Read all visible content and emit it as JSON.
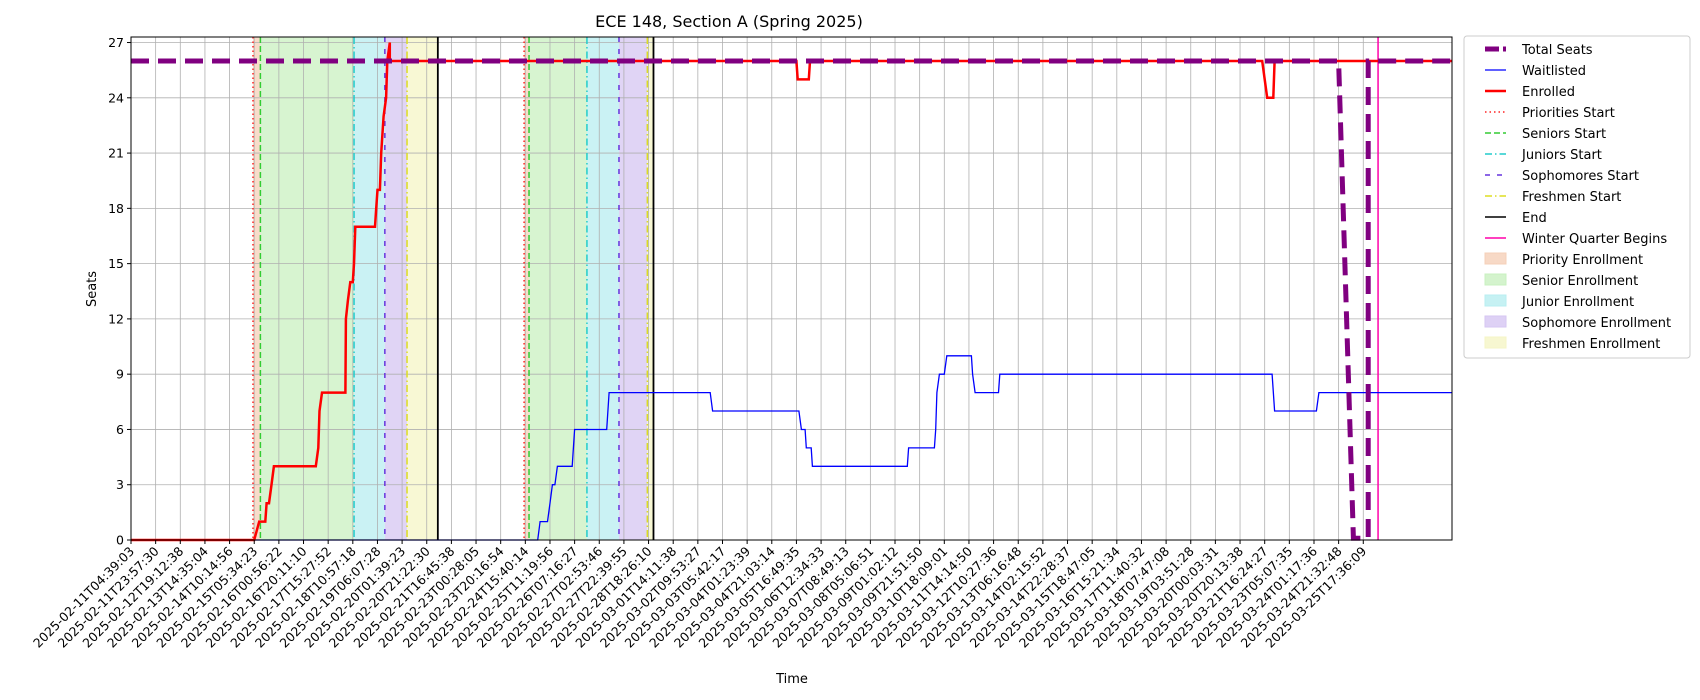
{
  "chart_data": {
    "type": "line",
    "title": "ECE 148, Section A (Spring 2025)",
    "xlabel": "Time",
    "ylabel": "Seats",
    "ylim": [
      0,
      27.3
    ],
    "yticks": [
      0,
      3,
      6,
      9,
      12,
      15,
      18,
      21,
      24,
      27
    ],
    "x_ticks": [
      "2025-02-11T04:39:03",
      "2025-02-11T23:57:30",
      "2025-02-12T19:12:38",
      "2025-02-13T14:35:04",
      "2025-02-14T10:14:56",
      "2025-02-15T05:34:23",
      "2025-02-16T00:56:22",
      "2025-02-16T20:11:10",
      "2025-02-17T15:27:52",
      "2025-02-18T10:57:18",
      "2025-02-19T06:07:28",
      "2025-02-20T01:39:23",
      "2025-02-20T21:22:30",
      "2025-02-21T16:45:38",
      "2025-02-23T00:28:05",
      "2025-02-23T20:16:54",
      "2025-02-24T15:40:14",
      "2025-02-25T11:19:56",
      "2025-02-26T07:16:27",
      "2025-02-27T02:53:46",
      "2025-02-27T22:39:55",
      "2025-02-28T18:26:10",
      "2025-03-01T14:11:38",
      "2025-03-02T09:53:27",
      "2025-03-03T05:42:17",
      "2025-03-04T01:23:39",
      "2025-03-04T21:03:14",
      "2025-03-05T16:49:35",
      "2025-03-06T12:34:33",
      "2025-03-07T08:49:13",
      "2025-03-08T05:06:51",
      "2025-03-09T01:02:12",
      "2025-03-09T21:51:50",
      "2025-03-10T18:09:01",
      "2025-03-11T14:14:50",
      "2025-03-12T10:27:36",
      "2025-03-13T06:16:48",
      "2025-03-14T02:15:52",
      "2025-03-14T22:28:37",
      "2025-03-15T18:47:05",
      "2025-03-16T15:21:34",
      "2025-03-17T11:40:32",
      "2025-03-18T07:47:08",
      "2025-03-19T03:51:28",
      "2025-03-20T00:03:31",
      "2025-03-20T20:13:38",
      "2025-03-21T16:24:27",
      "2025-03-23T05:07:35",
      "2025-03-24T01:17:36",
      "2025-03-24T21:32:48",
      "2025-03-25T17:36:09"
    ],
    "grid": true,
    "legend_position": "outside-right",
    "series": [
      {
        "name": "Total Seats",
        "color": "#800080",
        "style": "dashed-thick",
        "points": [
          [
            0,
            26
          ],
          [
            49,
            26
          ],
          [
            49.6,
            0.1
          ],
          [
            50.2,
            0.1
          ],
          [
            50.2,
            26
          ],
          [
            53.6,
            26
          ]
        ]
      },
      {
        "name": "Waitlisted",
        "color": "#0000ff",
        "style": "solid-thin",
        "points": [
          [
            0,
            0
          ],
          [
            14.0,
            0
          ],
          [
            16.5,
            0
          ],
          [
            16.6,
            1
          ],
          [
            16.9,
            1
          ],
          [
            17.0,
            2
          ],
          [
            17.1,
            3
          ],
          [
            17.2,
            3
          ],
          [
            17.3,
            4
          ],
          [
            17.9,
            4
          ],
          [
            18.0,
            6
          ],
          [
            19.3,
            6
          ],
          [
            19.35,
            7
          ],
          [
            19.4,
            8
          ],
          [
            23.5,
            8
          ],
          [
            23.6,
            7
          ],
          [
            27.1,
            7
          ],
          [
            27.2,
            6
          ],
          [
            27.35,
            6
          ],
          [
            27.4,
            5
          ],
          [
            27.6,
            5
          ],
          [
            27.65,
            4
          ],
          [
            31.5,
            4
          ],
          [
            31.55,
            5
          ],
          [
            32.6,
            5
          ],
          [
            32.65,
            6
          ],
          [
            32.7,
            8
          ],
          [
            32.8,
            9
          ],
          [
            33.0,
            9
          ],
          [
            33.1,
            10
          ],
          [
            34.1,
            10
          ],
          [
            34.15,
            9
          ],
          [
            34.25,
            8
          ],
          [
            35.2,
            8
          ],
          [
            35.25,
            9
          ],
          [
            46.3,
            9
          ],
          [
            46.4,
            7
          ],
          [
            48.1,
            7
          ],
          [
            48.2,
            8
          ],
          [
            53.6,
            8
          ]
        ]
      },
      {
        "name": "Enrolled",
        "color": "#ff0000",
        "style": "solid-thick",
        "points": [
          [
            0,
            0
          ],
          [
            5.0,
            0
          ],
          [
            5.2,
            1
          ],
          [
            5.45,
            1
          ],
          [
            5.5,
            2
          ],
          [
            5.6,
            2
          ],
          [
            5.7,
            3
          ],
          [
            5.8,
            4
          ],
          [
            7.5,
            4
          ],
          [
            7.6,
            5
          ],
          [
            7.65,
            7
          ],
          [
            7.75,
            8
          ],
          [
            8.7,
            8
          ],
          [
            8.72,
            12
          ],
          [
            8.8,
            13
          ],
          [
            8.9,
            14
          ],
          [
            9.0,
            14
          ],
          [
            9.05,
            15
          ],
          [
            9.1,
            17
          ],
          [
            9.9,
            17
          ],
          [
            9.95,
            18
          ],
          [
            10.0,
            19
          ],
          [
            10.1,
            19
          ],
          [
            10.15,
            21
          ],
          [
            10.25,
            23
          ],
          [
            10.35,
            24
          ],
          [
            10.4,
            26
          ],
          [
            10.5,
            27
          ],
          [
            10.5,
            26
          ],
          [
            27.0,
            26
          ],
          [
            27.05,
            25
          ],
          [
            27.5,
            25
          ],
          [
            27.55,
            26
          ],
          [
            45.9,
            26
          ],
          [
            46.0,
            25
          ],
          [
            46.1,
            24
          ],
          [
            46.35,
            24
          ],
          [
            46.4,
            26
          ],
          [
            53.6,
            26
          ]
        ]
      }
    ],
    "markers": [
      {
        "name": "Priorities Start",
        "color": "#ff2222",
        "style": "dotted",
        "x": [
          4.95,
          15.95
        ]
      },
      {
        "name": "Seniors Start",
        "color": "#33cc33",
        "style": "dashed",
        "x": [
          5.25,
          16.15
        ]
      },
      {
        "name": "Juniors Start",
        "color": "#22cccc",
        "style": "dashdot",
        "x": [
          9.05,
          18.5
        ]
      },
      {
        "name": "Sophomores Start",
        "color": "#6633dd",
        "style": "loosedash",
        "x": [
          10.3,
          19.8
        ]
      },
      {
        "name": "Freshmen Start",
        "color": "#dddd22",
        "style": "dashdot",
        "x": [
          11.2,
          20.95
        ]
      },
      {
        "name": "End",
        "color": "#000000",
        "style": "solid",
        "x": [
          12.45,
          21.2
        ]
      },
      {
        "name": "Winter Quarter Begins",
        "color": "#ff00aa",
        "style": "solid",
        "x": [
          50.6
        ]
      }
    ],
    "periods": [
      {
        "name": "Priority Enrollment",
        "color": "#f5d0b8",
        "ranges": [
          [
            4.95,
            5.25
          ],
          [
            15.95,
            16.15
          ]
        ]
      },
      {
        "name": "Senior Enrollment",
        "color": "#c9f0c0",
        "ranges": [
          [
            5.25,
            9.05
          ],
          [
            16.15,
            18.5
          ]
        ]
      },
      {
        "name": "Junior Enrollment",
        "color": "#b8eef0",
        "ranges": [
          [
            9.05,
            10.3
          ],
          [
            18.5,
            19.8
          ]
        ]
      },
      {
        "name": "Sophomore Enrollment",
        "color": "#d6c6f2",
        "ranges": [
          [
            10.3,
            11.2
          ],
          [
            19.8,
            20.95
          ]
        ]
      },
      {
        "name": "Freshmen Enrollment",
        "color": "#f5f5c6",
        "ranges": [
          [
            11.2,
            12.45
          ],
          [
            20.95,
            21.2
          ]
        ]
      }
    ]
  }
}
